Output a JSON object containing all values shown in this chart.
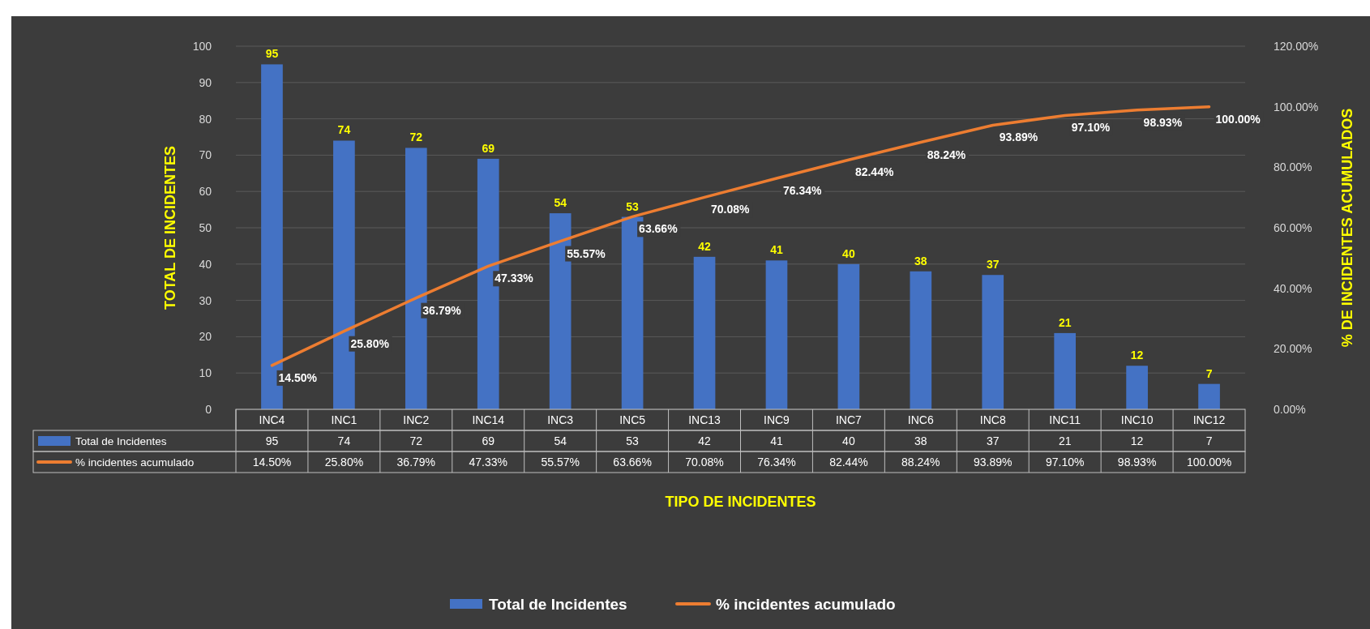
{
  "chart_data": {
    "type": "bar",
    "xlabel": "TIPO DE INCIDENTES",
    "ylabel": "TOTAL DE INCIDENTES",
    "y2label": "% DE INCIDENTES ACUMULADOS",
    "categories": [
      "INC4",
      "INC1",
      "INC2",
      "INC14",
      "INC3",
      "INC5",
      "INC13",
      "INC9",
      "INC7",
      "INC6",
      "INC8",
      "INC11",
      "INC10",
      "INC12"
    ],
    "series": [
      {
        "name": "Total de Incidentes",
        "color": "#4472c4",
        "values": [
          95,
          74,
          72,
          69,
          54,
          53,
          42,
          41,
          40,
          38,
          37,
          21,
          12,
          7
        ],
        "value_labels": [
          "95",
          "74",
          "72",
          "69",
          "54",
          "53",
          "42",
          "41",
          "40",
          "38",
          "37",
          "21",
          "12",
          "7"
        ]
      },
      {
        "name": "% incidentes acumulado",
        "type": "line",
        "axis": "y2",
        "color": "#ed7d31",
        "values": [
          14.5,
          25.8,
          36.79,
          47.33,
          55.57,
          63.66,
          70.08,
          76.34,
          82.44,
          88.24,
          93.89,
          97.1,
          98.93,
          100
        ],
        "value_labels": [
          "14.50%",
          "25.80%",
          "36.79%",
          "47.33%",
          "55.57%",
          "63.66%",
          "70.08%",
          "76.34%",
          "82.44%",
          "88.24%",
          "93.89%",
          "97.10%",
          "98.93%",
          "100.00%"
        ]
      }
    ],
    "ylim": [
      0,
      100
    ],
    "yticks": [
      0,
      10,
      20,
      30,
      40,
      50,
      60,
      70,
      80,
      90,
      100
    ],
    "y2lim": [
      0,
      120
    ],
    "y2ticks": [
      {
        "value": 0,
        "label": "0.00%"
      },
      {
        "value": 20,
        "label": "20.00%"
      },
      {
        "value": 40,
        "label": "40.00%"
      },
      {
        "value": 60,
        "label": "60.00%"
      },
      {
        "value": 80,
        "label": "80.00%"
      },
      {
        "value": 100,
        "label": "100.00%"
      },
      {
        "value": 120,
        "label": "120.00%"
      }
    ],
    "grid": "y",
    "legend": "bottom",
    "marker": "none"
  }
}
